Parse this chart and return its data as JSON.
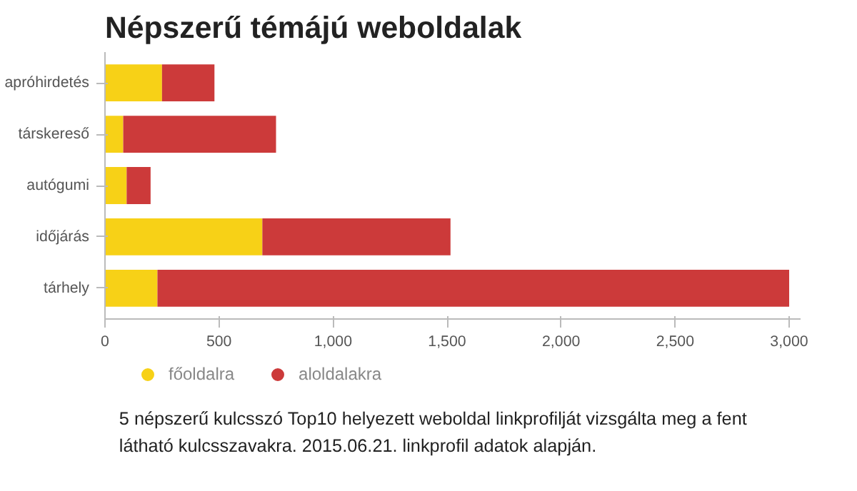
{
  "chart_data": {
    "type": "bar",
    "orientation": "horizontal",
    "stacked": true,
    "title": "Népszerű témájú weboldalak",
    "categories": [
      "apróhirdetés",
      "társkereső",
      "autógumi",
      "időjárás",
      "tárhely"
    ],
    "series": [
      {
        "name": "főoldalra",
        "color": "#f7d117",
        "values": [
          250,
          80,
          95,
          690,
          230
        ]
      },
      {
        "name": "aloldalakra",
        "color": "#cc3a3a",
        "values": [
          230,
          670,
          105,
          825,
          2770
        ]
      }
    ],
    "xlim": [
      0,
      3050
    ],
    "xticks": [
      0,
      {
        "value": 500,
        "label": "500"
      },
      {
        "value": 1000,
        "label": "1,000"
      },
      {
        "value": 1500,
        "label": "1,500"
      },
      {
        "value": 2000,
        "label": "2,000"
      },
      {
        "value": 2500,
        "label": "2,500"
      },
      {
        "value": 3000,
        "label": "3,000"
      }
    ],
    "legend": "bottom left",
    "grid": false,
    "annotations": [
      "5 népszerű kulcsszó Top10 helyezett weboldal linkprofilját vizsgálta meg a fent látható kulcsszavakra. 2015.06.21. linkprofil adatok alapján."
    ]
  }
}
